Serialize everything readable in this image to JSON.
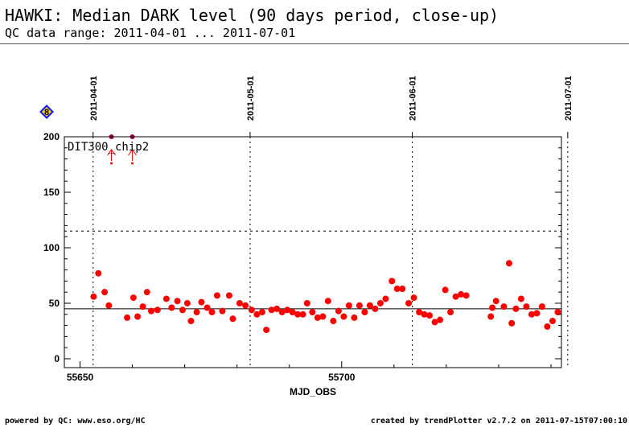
{
  "header": {
    "title": "HAWKI: Median DARK level (90 days period, close-up)",
    "subtitle": "QC data range: 2011-04-01 ... 2011-07-01"
  },
  "footer": {
    "left": "powered by QC: www.eso.org/HC",
    "right": "created by trendPlotter v2.7.2 on 2011-07-15T07:00:10"
  },
  "badge": {
    "label": "8",
    "color": "#1a1aff"
  },
  "colors": {
    "points": "#ff0000",
    "axes": "#000000"
  },
  "chart_data": {
    "type": "scatter",
    "xlabel": "MJD_OBS",
    "ylabel": "",
    "series_label": "DIT300_chip2",
    "xlim": [
      55647,
      55742
    ],
    "ylim": [
      -8,
      200
    ],
    "xticks": [
      55650,
      55700
    ],
    "yticks": [
      0,
      50,
      100,
      150,
      200
    ],
    "date_markers": [
      {
        "x": 55652.5,
        "label": "2011-04-01"
      },
      {
        "x": 55682.5,
        "label": "2011-05-01"
      },
      {
        "x": 55713.5,
        "label": "2011-06-01"
      },
      {
        "x": 55743.2,
        "label": "2011-07-01"
      }
    ],
    "reference_line": 45,
    "threshold_line": 115,
    "out_of_range_points": [
      {
        "x": 55656,
        "note": "above"
      },
      {
        "x": 55660,
        "note": "above"
      }
    ],
    "points": [
      {
        "x": 55652.6,
        "y": 56
      },
      {
        "x": 55653.5,
        "y": 77
      },
      {
        "x": 55654.7,
        "y": 60
      },
      {
        "x": 55655.5,
        "y": 48
      },
      {
        "x": 55659,
        "y": 37
      },
      {
        "x": 55660.2,
        "y": 55
      },
      {
        "x": 55661,
        "y": 38
      },
      {
        "x": 55662,
        "y": 47
      },
      {
        "x": 55662.8,
        "y": 60
      },
      {
        "x": 55663.6,
        "y": 43
      },
      {
        "x": 55664.8,
        "y": 44
      },
      {
        "x": 55666.5,
        "y": 54
      },
      {
        "x": 55667.5,
        "y": 46
      },
      {
        "x": 55668.6,
        "y": 52
      },
      {
        "x": 55669.6,
        "y": 44
      },
      {
        "x": 55670.5,
        "y": 50
      },
      {
        "x": 55671.2,
        "y": 34
      },
      {
        "x": 55672.3,
        "y": 42
      },
      {
        "x": 55673.2,
        "y": 51
      },
      {
        "x": 55674.3,
        "y": 46
      },
      {
        "x": 55675.2,
        "y": 42
      },
      {
        "x": 55676.2,
        "y": 57
      },
      {
        "x": 55677.2,
        "y": 43
      },
      {
        "x": 55678.5,
        "y": 57
      },
      {
        "x": 55679.2,
        "y": 36
      },
      {
        "x": 55680.5,
        "y": 50
      },
      {
        "x": 55681.6,
        "y": 48
      },
      {
        "x": 55682.8,
        "y": 44
      },
      {
        "x": 55683.8,
        "y": 40
      },
      {
        "x": 55684.8,
        "y": 42
      },
      {
        "x": 55685.6,
        "y": 26
      },
      {
        "x": 55686.6,
        "y": 44
      },
      {
        "x": 55687.6,
        "y": 45
      },
      {
        "x": 55688.6,
        "y": 42
      },
      {
        "x": 55689.6,
        "y": 44
      },
      {
        "x": 55690.6,
        "y": 42
      },
      {
        "x": 55691.6,
        "y": 40
      },
      {
        "x": 55692.6,
        "y": 40
      },
      {
        "x": 55693.4,
        "y": 50
      },
      {
        "x": 55694.4,
        "y": 42
      },
      {
        "x": 55695.4,
        "y": 37
      },
      {
        "x": 55696.4,
        "y": 38
      },
      {
        "x": 55697.4,
        "y": 52
      },
      {
        "x": 55698.4,
        "y": 34
      },
      {
        "x": 55699.4,
        "y": 43
      },
      {
        "x": 55700.4,
        "y": 38
      },
      {
        "x": 55701.4,
        "y": 48
      },
      {
        "x": 55702.4,
        "y": 37
      },
      {
        "x": 55703.4,
        "y": 48
      },
      {
        "x": 55704.4,
        "y": 42
      },
      {
        "x": 55705.4,
        "y": 48
      },
      {
        "x": 55706.4,
        "y": 45
      },
      {
        "x": 55707.4,
        "y": 50
      },
      {
        "x": 55708.4,
        "y": 54
      },
      {
        "x": 55709.6,
        "y": 70
      },
      {
        "x": 55710.6,
        "y": 63
      },
      {
        "x": 55711.6,
        "y": 63
      },
      {
        "x": 55712.8,
        "y": 50
      },
      {
        "x": 55713.8,
        "y": 55
      },
      {
        "x": 55714.8,
        "y": 42
      },
      {
        "x": 55715.8,
        "y": 40
      },
      {
        "x": 55716.8,
        "y": 39
      },
      {
        "x": 55717.8,
        "y": 33
      },
      {
        "x": 55718.8,
        "y": 35
      },
      {
        "x": 55719.8,
        "y": 62
      },
      {
        "x": 55720.8,
        "y": 42
      },
      {
        "x": 55721.8,
        "y": 56
      },
      {
        "x": 55722.8,
        "y": 58
      },
      {
        "x": 55723.8,
        "y": 57
      },
      {
        "x": 55728.5,
        "y": 38
      },
      {
        "x": 55728.8,
        "y": 46
      },
      {
        "x": 55729.5,
        "y": 52
      },
      {
        "x": 55731,
        "y": 47
      },
      {
        "x": 55732,
        "y": 86
      },
      {
        "x": 55732.5,
        "y": 32
      },
      {
        "x": 55733.3,
        "y": 45
      },
      {
        "x": 55734.3,
        "y": 54
      },
      {
        "x": 55735.3,
        "y": 47
      },
      {
        "x": 55736.3,
        "y": 40
      },
      {
        "x": 55737.3,
        "y": 41
      },
      {
        "x": 55738.3,
        "y": 47
      },
      {
        "x": 55739.3,
        "y": 29
      },
      {
        "x": 55740.3,
        "y": 34
      },
      {
        "x": 55741.3,
        "y": 42
      }
    ]
  }
}
